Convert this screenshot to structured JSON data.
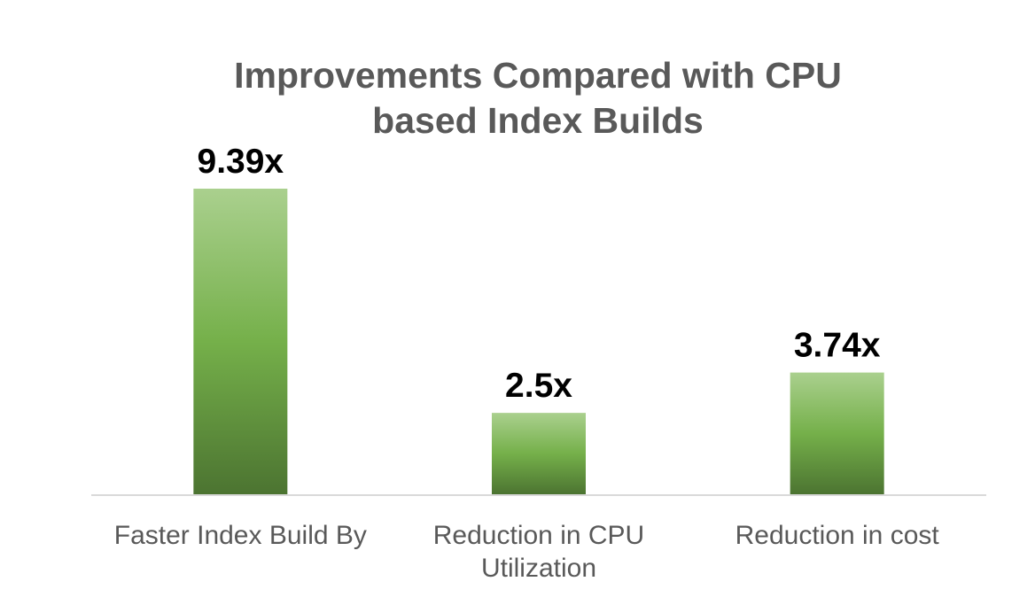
{
  "chart_data": {
    "type": "bar",
    "title_lines": [
      "Improvements Compared with CPU",
      "based Index Builds"
    ],
    "categories": [
      [
        "Faster Index Build By"
      ],
      [
        "Reduction in CPU",
        "Utilization"
      ],
      [
        "Reduction in cost"
      ]
    ],
    "values": [
      9.39,
      2.5,
      3.74
    ],
    "data_labels": [
      "9.39x",
      "2.5x",
      "3.74x"
    ],
    "xlabel": "",
    "ylabel": "",
    "ylim": [
      0,
      9.39
    ],
    "grid": false,
    "legend": "none",
    "colors": {
      "bar_top": "#aad08e",
      "bar_mid": "#75b04a",
      "bar_bottom": "#4c7431",
      "axis": "#d9d9d9"
    }
  }
}
